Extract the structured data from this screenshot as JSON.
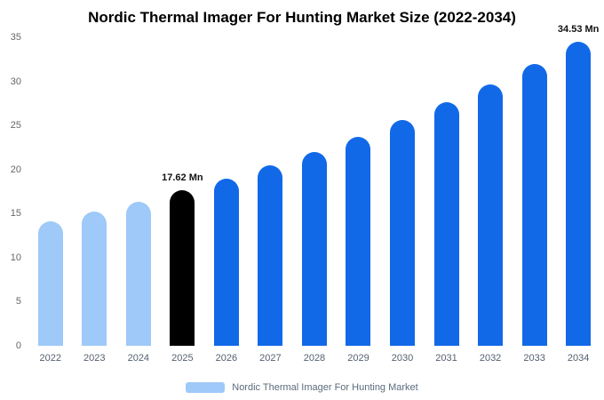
{
  "title": "Nordic Thermal Imager For Hunting Market Size (2022-2034)",
  "legend": {
    "label": "Nordic Thermal Imager For Hunting Market",
    "swatch_color": "#9ec9f8"
  },
  "colors": {
    "historical": "#9ec9f8",
    "highlight": "#000000",
    "forecast": "#1269e8"
  },
  "chart_data": {
    "type": "bar",
    "title": "Nordic Thermal Imager For Hunting Market Size (2022-2034)",
    "unit": "Mn",
    "categories": [
      "2022",
      "2023",
      "2024",
      "2025",
      "2026",
      "2027",
      "2028",
      "2029",
      "2030",
      "2031",
      "2032",
      "2033",
      "2034"
    ],
    "values": [
      14.1,
      15.2,
      16.3,
      17.62,
      19.0,
      20.5,
      22.0,
      23.7,
      25.6,
      27.6,
      29.7,
      32.0,
      34.53
    ],
    "bar_colors": [
      "#9ec9f8",
      "#9ec9f8",
      "#9ec9f8",
      "#000000",
      "#1269e8",
      "#1269e8",
      "#1269e8",
      "#1269e8",
      "#1269e8",
      "#1269e8",
      "#1269e8",
      "#1269e8",
      "#1269e8"
    ],
    "annotations": [
      {
        "category": "2025",
        "text": "17.62 Mn"
      },
      {
        "category": "2034",
        "text": "34.53 Mn"
      }
    ],
    "xlabel": "",
    "ylabel": "",
    "ylim": [
      0,
      35
    ],
    "yticks": [
      0,
      5,
      10,
      15,
      20,
      25,
      30,
      35
    ],
    "grid": false,
    "legend_position": "bottom"
  }
}
